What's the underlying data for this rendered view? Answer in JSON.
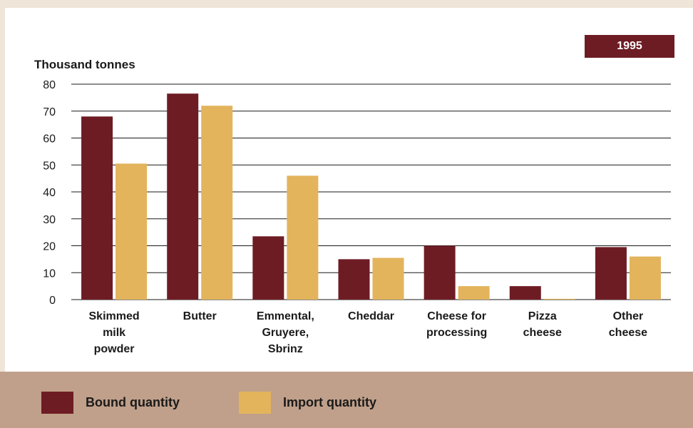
{
  "badge": "1995",
  "colors": {
    "bound": "#6e1c24",
    "import": "#e3b45c",
    "legend_band": "#c0a08a",
    "background": "#efe5d8"
  },
  "legend": [
    {
      "label": "Bound quantity",
      "color": "#6e1c24"
    },
    {
      "label": "Import quantity",
      "color": "#e3b45c"
    }
  ],
  "chart_data": {
    "type": "bar",
    "ylabel": "Thousand tonnes",
    "ylim": [
      0,
      80
    ],
    "yticks": [
      0,
      10,
      20,
      30,
      40,
      50,
      60,
      70,
      80
    ],
    "grid": true,
    "legend_position": "bottom",
    "categories": [
      [
        "Skimmed",
        "milk",
        "powder"
      ],
      [
        "Butter"
      ],
      [
        "Emmental,",
        "Gruyere,",
        "Sbrinz"
      ],
      [
        "Cheddar"
      ],
      [
        "Cheese for",
        "processing"
      ],
      [
        "Pizza",
        "cheese"
      ],
      [
        "Other",
        "cheese"
      ]
    ],
    "series": [
      {
        "name": "Bound quantity",
        "color": "#6e1c24",
        "values": [
          68,
          76.5,
          23.5,
          15,
          20,
          5,
          19.5
        ]
      },
      {
        "name": "Import quantity",
        "color": "#e3b45c",
        "values": [
          50.5,
          72,
          46,
          15.5,
          5,
          0.3,
          16
        ]
      }
    ]
  }
}
